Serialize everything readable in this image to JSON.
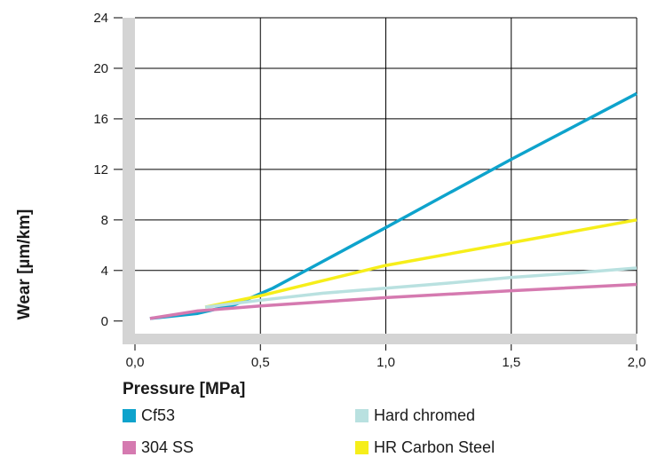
{
  "chart_data": {
    "type": "line",
    "xlabel": "Pressure [MPa]",
    "ylabel": "Wear [µm/km]",
    "xlim": [
      0,
      2.0
    ],
    "ylim": [
      -1,
      24
    ],
    "x_ticks": [
      {
        "value": 0,
        "label": "0,0"
      },
      {
        "value": 0.5,
        "label": "0,5"
      },
      {
        "value": 1.0,
        "label": "1,0"
      },
      {
        "value": 1.5,
        "label": "1,5"
      },
      {
        "value": 2.0,
        "label": "2,0"
      }
    ],
    "y_ticks": [
      {
        "value": 0,
        "label": "0"
      },
      {
        "value": 4,
        "label": "4"
      },
      {
        "value": 8,
        "label": "8"
      },
      {
        "value": 12,
        "label": "12"
      },
      {
        "value": 16,
        "label": "16"
      },
      {
        "value": 20,
        "label": "20"
      },
      {
        "value": 24,
        "label": "24"
      }
    ],
    "grid": true,
    "legend_position": "bottom",
    "series": [
      {
        "name": "Cf53",
        "color": "#0ea3cc",
        "points": [
          [
            0.06,
            0.2
          ],
          [
            0.25,
            0.6
          ],
          [
            0.4,
            1.3
          ],
          [
            0.55,
            2.6
          ],
          [
            0.7,
            4.2
          ],
          [
            0.85,
            5.8
          ],
          [
            1.0,
            7.4
          ],
          [
            1.25,
            10.1
          ],
          [
            1.5,
            12.8
          ],
          [
            1.75,
            15.4
          ],
          [
            2.0,
            18.0
          ]
        ]
      },
      {
        "name": "Hard chromed",
        "color": "#b9e1e0",
        "points": [
          [
            0.28,
            1.1
          ],
          [
            0.5,
            1.65
          ],
          [
            0.75,
            2.2
          ],
          [
            1.0,
            2.6
          ],
          [
            1.25,
            3.0
          ],
          [
            1.5,
            3.45
          ],
          [
            1.75,
            3.8
          ],
          [
            2.0,
            4.2
          ]
        ]
      },
      {
        "name": "304 SS",
        "color": "#d57ab0",
        "points": [
          [
            0.06,
            0.2
          ],
          [
            0.25,
            0.8
          ],
          [
            0.5,
            1.2
          ],
          [
            1.0,
            1.85
          ],
          [
            1.5,
            2.4
          ],
          [
            2.0,
            2.9
          ]
        ]
      },
      {
        "name": "HR Carbon Steel",
        "color": "#f6ee1a",
        "points": [
          [
            0.28,
            1.1
          ],
          [
            0.5,
            2.0
          ],
          [
            0.75,
            3.2
          ],
          [
            1.0,
            4.4
          ],
          [
            1.5,
            6.2
          ],
          [
            2.0,
            8.0
          ]
        ]
      }
    ],
    "series_order": [
      0,
      2,
      3,
      1
    ]
  },
  "axis_bar_color": "#d4d4d4",
  "legend": {
    "items": [
      {
        "label": "Cf53",
        "color": "#0ea3cc"
      },
      {
        "label": "Hard chromed",
        "color": "#b9e1e0"
      },
      {
        "label": "304 SS",
        "color": "#d57ab0"
      },
      {
        "label": "HR Carbon Steel",
        "color": "#f6ee1a"
      }
    ]
  }
}
